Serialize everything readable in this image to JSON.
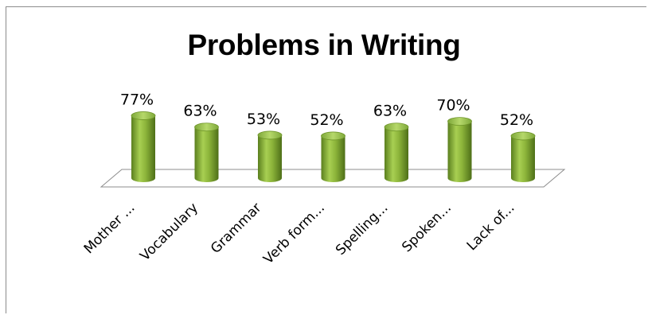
{
  "chart_data": {
    "type": "bar",
    "title": "Problems in Writing",
    "categories": [
      "Mother ...",
      "Vocabulary",
      "Grammar",
      "Verb form...",
      "Spelling...",
      "Spoken...",
      "Lack of..."
    ],
    "values": [
      77,
      63,
      53,
      52,
      63,
      70,
      52
    ],
    "value_labels": [
      "77%",
      "63%",
      "53%",
      "52%",
      "63%",
      "70%",
      "52%"
    ],
    "value_format": "percent",
    "style": "3d-cylinder",
    "bar_color": "#8cb43a",
    "grid": false,
    "legend": "none"
  }
}
